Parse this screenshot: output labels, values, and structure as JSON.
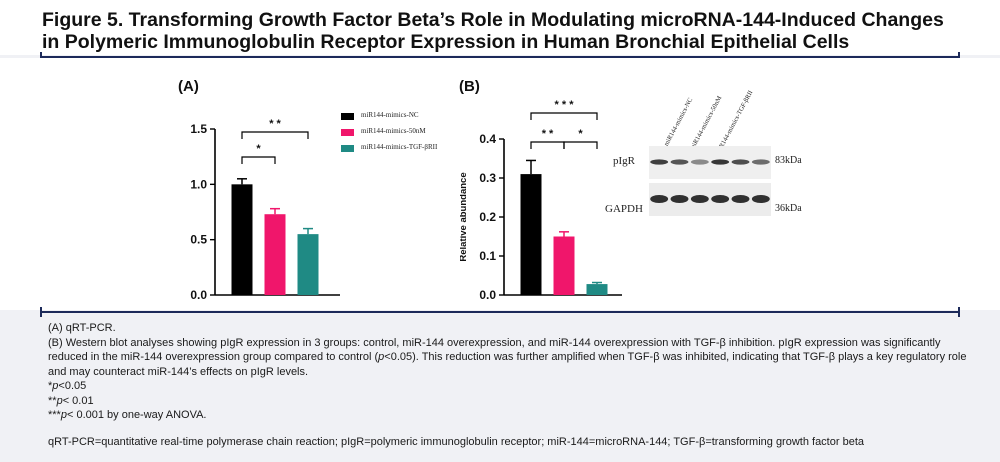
{
  "figure": {
    "title_line1": "Figure 5. Transforming Growth Factor Beta’s Role in Modulating microRNA-144-Induced Changes",
    "title_line2": "in Polymeric Immunoglobulin Receptor Expression in Human Bronchial Epithelial Cells"
  },
  "chart_data": [
    {
      "type": "bar",
      "panel": "(A)",
      "categories": [
        "miR144-mimics-NC",
        "miR144-mimics-50nM",
        "miR144-mimics-TGF-βRII"
      ],
      "values": [
        1.0,
        0.73,
        0.55
      ],
      "errors": [
        0.05,
        0.05,
        0.05
      ],
      "colors": [
        "#000000",
        "#f0166b",
        "#1f8a84"
      ],
      "ylim": [
        0,
        1.5
      ],
      "yticks": [
        "0.0",
        "0.5",
        "1.0",
        "1.5"
      ],
      "ylabel": "",
      "legend": {
        "placement": "top-right",
        "entries": [
          "miR144-mimics-NC",
          "miR144-mimics-50nM",
          "miR144-mimics-TGF-βRII"
        ]
      },
      "significance": [
        {
          "from": 0,
          "to": 1,
          "label": "*"
        },
        {
          "from": 0,
          "to": 2,
          "label": "* *"
        }
      ]
    },
    {
      "type": "bar",
      "panel": "(B)",
      "categories": [
        "miR144-mimics-NC",
        "miR144-mimics-50nM",
        "miR144-mimics-TGF-βRII"
      ],
      "values": [
        0.31,
        0.15,
        0.028
      ],
      "errors": [
        0.035,
        0.012,
        0.004
      ],
      "colors": [
        "#000000",
        "#f0166b",
        "#1f8a84"
      ],
      "ylim": [
        0,
        0.4
      ],
      "yticks": [
        "0.0",
        "0.1",
        "0.2",
        "0.3",
        "0.4"
      ],
      "ylabel": "Relative abundance",
      "significance": [
        {
          "from": 0,
          "to": 1,
          "label": "* *"
        },
        {
          "from": 1,
          "to": 2,
          "label": "*"
        },
        {
          "from": 0,
          "to": 2,
          "label": "* * *"
        }
      ]
    }
  ],
  "western_blot": {
    "lanes": [
      "miR144-mimics-NC",
      "miR144-mimics-50nM",
      "miR144-mimics-TGF-βRII"
    ],
    "rows": [
      {
        "label": "pIgR",
        "size": "83kDa",
        "intensities": [
          0.85,
          0.7,
          0.35,
          0.9,
          0.75,
          0.55
        ]
      },
      {
        "label": "GAPDH",
        "size": "36kDa",
        "intensities": [
          0.95,
          0.95,
          0.95,
          0.95,
          0.95,
          0.95
        ]
      }
    ]
  },
  "caption": {
    "line_a": "(A) qRT-PCR.",
    "line_b_pre": "(B) Western blot analyses showing pIgR expression in 3 groups: control, miR-144 overexpression, and miR-144 overexpression with TGF-β inhibition. pIgR expression was significantly reduced in the miR-144 overexpression group compared to control (",
    "line_b_italic": "p",
    "line_b_post": "<0.05). This reduction was further amplified when TGF-β was inhibited, indicating that TGF-β plays a key regulatory role and may counteract miR-144’s effects on pIgR levels.",
    "sig1_prefix": "*",
    "sig1_p": "p",
    "sig1_suffix": "<0.05",
    "sig2_prefix": "**",
    "sig2_p": "p",
    "sig2_suffix": "< 0.01",
    "sig3_prefix": "***",
    "sig3_p": "p",
    "sig3_suffix": "< 0.001 by one-way ANOVA.",
    "abbreviations": "qRT-PCR=quantitative real-time polymerase chain reaction; pIgR=polymeric immunoglobulin receptor; miR-144=microRNA-144; TGF-β=transforming growth factor beta"
  }
}
